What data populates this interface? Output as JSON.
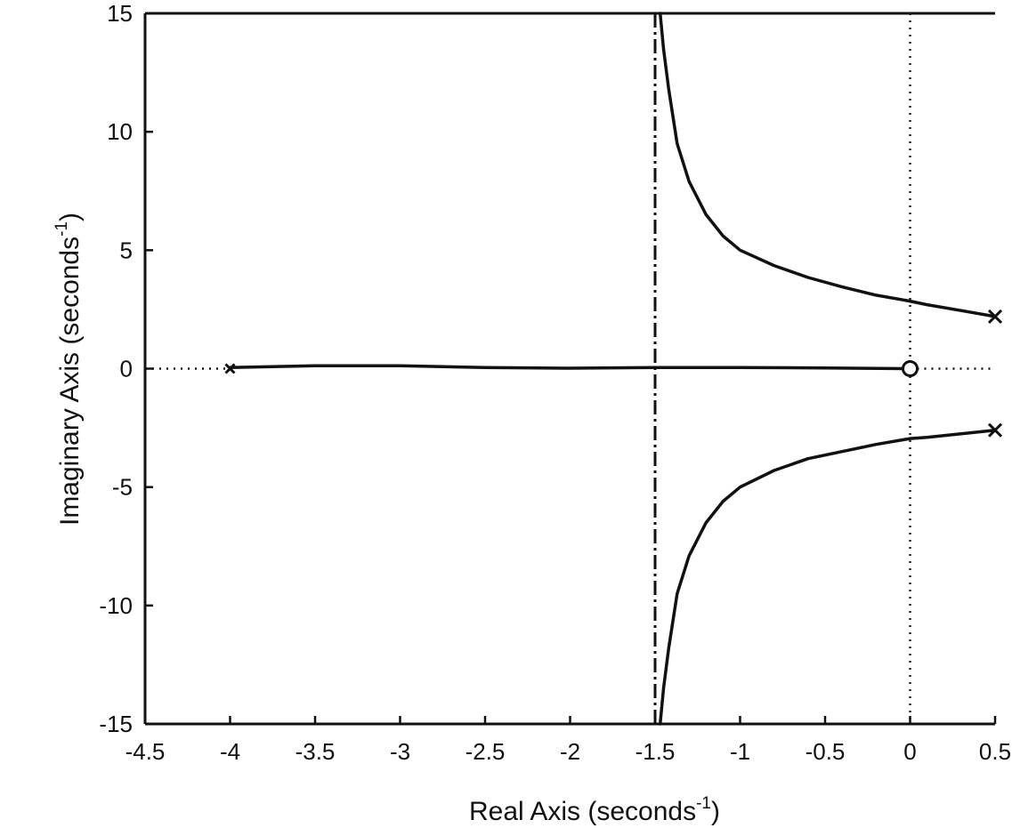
{
  "chart_data": {
    "type": "line",
    "title": "",
    "xlabel": {
      "main": "Real Axis (seconds",
      "sup": "-1",
      "close": ")"
    },
    "ylabel": {
      "main": "Imaginary Axis (seconds",
      "sup": "-1",
      "close": ")"
    },
    "xlim": [
      -4.5,
      0.5
    ],
    "ylim": [
      -15,
      15
    ],
    "x_ticks": [
      {
        "value": -4.5,
        "label": "-4.5"
      },
      {
        "value": -4,
        "label": "-4"
      },
      {
        "value": -3.5,
        "label": "-3.5"
      },
      {
        "value": -3,
        "label": "-3"
      },
      {
        "value": -2.5,
        "label": "-2.5"
      },
      {
        "value": -2,
        "label": "-2"
      },
      {
        "value": -1.5,
        "label": "-1.5"
      },
      {
        "value": -1,
        "label": "-1"
      },
      {
        "value": -0.5,
        "label": "-0.5"
      },
      {
        "value": 0,
        "label": "0"
      },
      {
        "value": 0.5,
        "label": "0.5"
      }
    ],
    "y_ticks": [
      {
        "value": 15,
        "label": "15"
      },
      {
        "value": 10,
        "label": "10"
      },
      {
        "value": 5,
        "label": "5"
      },
      {
        "value": 0,
        "label": "0"
      },
      {
        "value": -5,
        "label": "-5"
      },
      {
        "value": -10,
        "label": "-10"
      },
      {
        "value": -15,
        "label": "-15"
      }
    ],
    "grid": false,
    "series": [
      {
        "key": "upper-branch",
        "style": "solid",
        "points": [
          [
            0.5,
            2.2
          ],
          [
            0.3,
            2.45
          ],
          [
            0.1,
            2.7
          ],
          [
            0,
            2.85
          ],
          [
            -0.2,
            3.1
          ],
          [
            -0.4,
            3.45
          ],
          [
            -0.6,
            3.85
          ],
          [
            -0.8,
            4.35
          ],
          [
            -1.0,
            5.0
          ],
          [
            -1.1,
            5.6
          ],
          [
            -1.2,
            6.5
          ],
          [
            -1.3,
            7.9
          ],
          [
            -1.37,
            9.5
          ],
          [
            -1.42,
            11.8
          ],
          [
            -1.45,
            13.5
          ],
          [
            -1.47,
            15
          ]
        ]
      },
      {
        "key": "lower-branch",
        "style": "solid",
        "points": [
          [
            0.5,
            -2.6
          ],
          [
            0.3,
            -2.75
          ],
          [
            0.1,
            -2.9
          ],
          [
            0,
            -2.95
          ],
          [
            -0.2,
            -3.2
          ],
          [
            -0.4,
            -3.5
          ],
          [
            -0.6,
            -3.8
          ],
          [
            -0.8,
            -4.3
          ],
          [
            -1.0,
            -5.0
          ],
          [
            -1.1,
            -5.6
          ],
          [
            -1.2,
            -6.5
          ],
          [
            -1.3,
            -7.9
          ],
          [
            -1.37,
            -9.5
          ],
          [
            -1.42,
            -11.8
          ],
          [
            -1.45,
            -13.5
          ],
          [
            -1.47,
            -15
          ]
        ]
      },
      {
        "key": "real-axis-branch",
        "style": "solid",
        "points": [
          [
            -4,
            0.05
          ],
          [
            -3.5,
            0.12
          ],
          [
            -3,
            0.12
          ],
          [
            -2.5,
            0.05
          ],
          [
            -2,
            0.02
          ],
          [
            -1.5,
            0.05
          ],
          [
            -1,
            0.05
          ],
          [
            -0.5,
            0.03
          ],
          [
            0,
            0
          ]
        ]
      },
      {
        "key": "real-axis-left-dotted",
        "style": "dotted",
        "points": [
          [
            -4.5,
            0
          ],
          [
            -4,
            0
          ]
        ]
      },
      {
        "key": "real-axis-right-dotted",
        "style": "dotted",
        "points": [
          [
            0,
            0
          ],
          [
            0.5,
            0
          ]
        ]
      }
    ],
    "asymptote_x": -1.5,
    "reference_x": 0,
    "poles": [
      [
        0.5,
        2.2
      ],
      [
        0.5,
        -2.6
      ],
      [
        -4,
        0
      ]
    ],
    "zeros": [
      [
        0,
        0
      ]
    ]
  }
}
